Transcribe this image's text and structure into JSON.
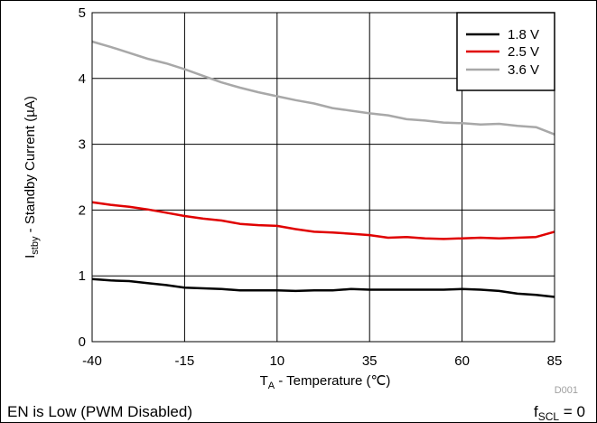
{
  "chart_data": {
    "type": "line",
    "xlabel_main": "T",
    "xlabel_sub": "A",
    "xlabel_rest": " - Temperature (℃)",
    "ylabel_main": "I",
    "ylabel_sub": "stby",
    "ylabel_rest": " - Standby Current (µA)",
    "xlim": [
      -40,
      85
    ],
    "ylim": [
      0,
      5
    ],
    "x_ticks": [
      -40,
      -15,
      10,
      35,
      60,
      85
    ],
    "y_ticks": [
      0,
      1,
      2,
      3,
      4,
      5
    ],
    "grid": true,
    "legend_position": "top-right",
    "series": [
      {
        "name": "1.8 V",
        "color": "#000000",
        "x": [
          -40,
          -35,
          -30,
          -25,
          -20,
          -15,
          -10,
          -5,
          0,
          5,
          10,
          15,
          20,
          25,
          30,
          35,
          40,
          45,
          50,
          55,
          60,
          65,
          70,
          75,
          80,
          85
        ],
        "values": [
          0.95,
          0.93,
          0.92,
          0.89,
          0.86,
          0.82,
          0.81,
          0.8,
          0.78,
          0.78,
          0.78,
          0.77,
          0.78,
          0.78,
          0.8,
          0.79,
          0.79,
          0.79,
          0.79,
          0.79,
          0.8,
          0.79,
          0.77,
          0.73,
          0.71,
          0.68
        ]
      },
      {
        "name": "2.5 V",
        "color": "#e00000",
        "x": [
          -40,
          -35,
          -30,
          -25,
          -20,
          -15,
          -10,
          -5,
          0,
          5,
          10,
          15,
          20,
          25,
          30,
          35,
          40,
          45,
          50,
          55,
          60,
          65,
          70,
          75,
          80,
          85
        ],
        "values": [
          2.12,
          2.08,
          2.05,
          2.01,
          1.96,
          1.91,
          1.87,
          1.84,
          1.79,
          1.77,
          1.76,
          1.71,
          1.67,
          1.66,
          1.64,
          1.62,
          1.58,
          1.59,
          1.57,
          1.56,
          1.57,
          1.58,
          1.57,
          1.58,
          1.59,
          1.67
        ]
      },
      {
        "name": "3.6 V",
        "color": "#a8a8a8",
        "x": [
          -40,
          -35,
          -30,
          -25,
          -20,
          -15,
          -10,
          -5,
          0,
          5,
          10,
          15,
          20,
          25,
          30,
          35,
          40,
          45,
          50,
          55,
          60,
          65,
          70,
          75,
          80,
          85
        ],
        "values": [
          4.56,
          4.48,
          4.39,
          4.3,
          4.23,
          4.14,
          4.04,
          3.94,
          3.86,
          3.79,
          3.73,
          3.67,
          3.62,
          3.55,
          3.51,
          3.47,
          3.44,
          3.38,
          3.36,
          3.33,
          3.32,
          3.3,
          3.31,
          3.28,
          3.26,
          3.15
        ]
      }
    ]
  },
  "figure_code": "D001",
  "notes": {
    "left": "EN is Low (PWM Disabled)",
    "right_main": "f",
    "right_sub": "SCL",
    "right_rest": " = 0"
  }
}
